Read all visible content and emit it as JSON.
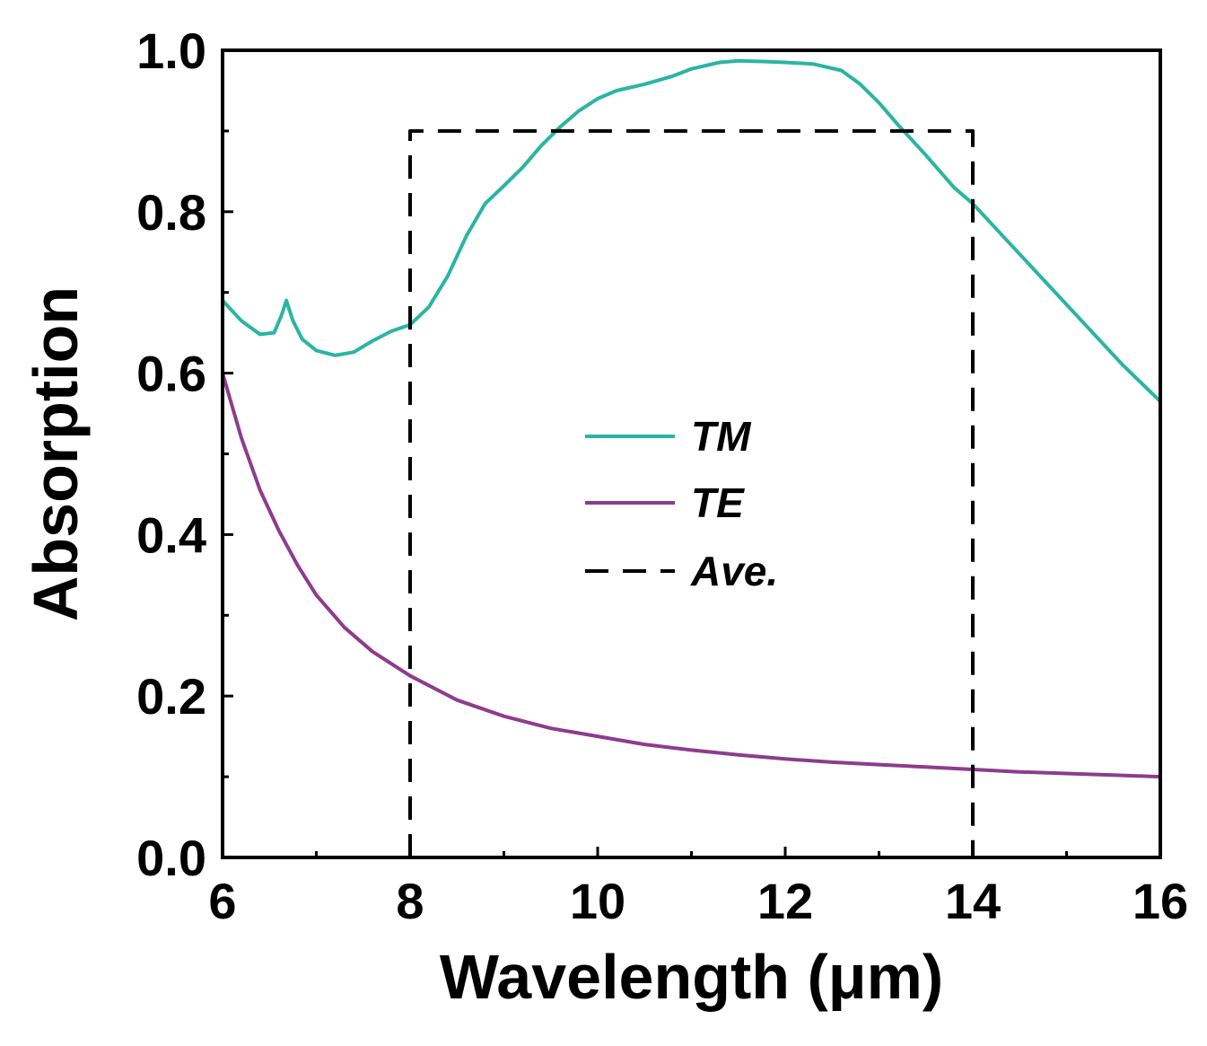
{
  "chart_data": {
    "type": "line",
    "title": "",
    "xlabel": "Wavelength (μm)",
    "ylabel": "Absorption",
    "xlim": [
      6,
      16
    ],
    "ylim": [
      0,
      1.0
    ],
    "xticks": [
      6,
      8,
      10,
      12,
      14,
      16
    ],
    "xtick_labels": [
      "6",
      "8",
      "10",
      "12",
      "14",
      "16"
    ],
    "yticks": [
      0,
      0.2,
      0.4,
      0.6,
      0.8,
      1.0
    ],
    "ytick_labels": [
      "0.0",
      "0.2",
      "0.4",
      "0.6",
      "0.8",
      "1.0"
    ],
    "grid": false,
    "legend_position": "center",
    "series": [
      {
        "name": "TM",
        "color": "#2ab5a2",
        "style": "solid",
        "x": [
          6.0,
          6.2,
          6.4,
          6.55,
          6.63,
          6.68,
          6.75,
          6.85,
          7.0,
          7.2,
          7.4,
          7.6,
          7.8,
          8.0,
          8.2,
          8.4,
          8.6,
          8.8,
          9.0,
          9.2,
          9.4,
          9.6,
          9.8,
          10.0,
          10.2,
          10.5,
          10.8,
          11.0,
          11.3,
          11.5,
          11.8,
          12.0,
          12.3,
          12.6,
          12.8,
          13.0,
          13.2,
          13.5,
          13.8,
          14.0,
          14.4,
          14.8,
          15.2,
          15.6,
          16.0
        ],
        "y": [
          0.69,
          0.665,
          0.648,
          0.65,
          0.672,
          0.69,
          0.665,
          0.642,
          0.628,
          0.622,
          0.626,
          0.64,
          0.652,
          0.66,
          0.682,
          0.72,
          0.77,
          0.81,
          0.832,
          0.855,
          0.882,
          0.905,
          0.925,
          0.94,
          0.95,
          0.958,
          0.968,
          0.977,
          0.985,
          0.987,
          0.986,
          0.985,
          0.983,
          0.975,
          0.958,
          0.935,
          0.908,
          0.87,
          0.83,
          0.81,
          0.76,
          0.71,
          0.66,
          0.61,
          0.565
        ]
      },
      {
        "name": "TE",
        "color": "#8e3b8e",
        "style": "solid",
        "x": [
          6.0,
          6.2,
          6.4,
          6.6,
          6.8,
          7.0,
          7.3,
          7.6,
          8.0,
          8.5,
          9.0,
          9.5,
          10.0,
          10.5,
          11.0,
          11.5,
          12.0,
          12.5,
          13.0,
          13.5,
          14.0,
          14.5,
          15.0,
          15.5,
          16.0
        ],
        "y": [
          0.6,
          0.52,
          0.455,
          0.405,
          0.362,
          0.325,
          0.285,
          0.255,
          0.225,
          0.195,
          0.175,
          0.16,
          0.15,
          0.14,
          0.133,
          0.127,
          0.122,
          0.118,
          0.115,
          0.112,
          0.109,
          0.106,
          0.104,
          0.102,
          0.1
        ]
      },
      {
        "name": "Ave.",
        "color": "#000000",
        "style": "dashed",
        "x": [
          8,
          8,
          14,
          14
        ],
        "y": [
          0.0,
          0.9,
          0.9,
          0.0
        ]
      }
    ]
  }
}
